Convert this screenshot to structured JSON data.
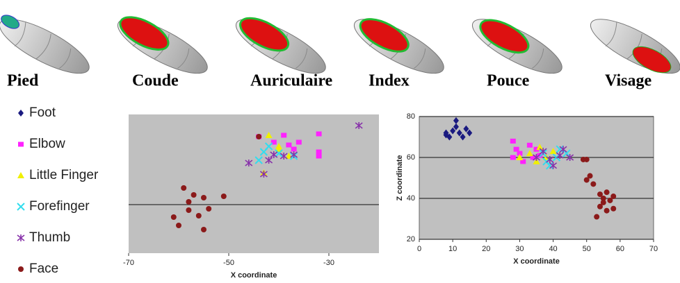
{
  "brain_labels": [
    "Pied",
    "Coude",
    "Auriculaire",
    "Index",
    "Pouce",
    "Visage"
  ],
  "chart_data": [
    {
      "type": "scatter",
      "xlabel": "X coordinate",
      "xlim": [
        -70,
        -20
      ],
      "xticks": [
        -70,
        -50,
        -30
      ],
      "ylim": [
        0,
        100
      ],
      "gridlines": [
        35
      ],
      "series": [
        {
          "name": "Foot",
          "color": "#1a1a80",
          "marker": "diamond",
          "x": [],
          "y": []
        },
        {
          "name": "Elbow",
          "color": "#ff22ff",
          "marker": "square",
          "x": [
            -44,
            -41,
            -38,
            -36,
            -32,
            -32,
            -32,
            -39,
            -37
          ],
          "y": [
            84,
            80,
            78,
            80,
            86,
            73,
            70,
            85,
            75
          ]
        },
        {
          "name": "Little Finger",
          "color": "#f0f000",
          "marker": "triangle",
          "x": [
            -42,
            -40,
            -43,
            -40,
            -38
          ],
          "y": [
            85,
            75,
            58,
            77,
            70
          ]
        },
        {
          "name": "Forefinger",
          "color": "#33ddee",
          "marker": "x",
          "x": [
            -44,
            -42,
            -40,
            -37,
            -43
          ],
          "y": [
            67,
            77,
            72,
            70,
            73
          ]
        },
        {
          "name": "Thumb",
          "color": "#8833aa",
          "marker": "star",
          "x": [
            -46,
            -43,
            -41,
            -39,
            -37,
            -24,
            -42
          ],
          "y": [
            65,
            57,
            71,
            70,
            71,
            92,
            67
          ]
        },
        {
          "name": "Face",
          "color": "#8b1a1a",
          "marker": "circle",
          "x": [
            -59,
            -57,
            -55,
            -58,
            -61,
            -60,
            -55,
            -51,
            -58,
            -54,
            -56,
            -44
          ],
          "y": [
            47,
            42,
            40,
            37,
            26,
            20,
            17,
            41,
            31,
            32,
            27,
            84
          ]
        }
      ]
    },
    {
      "type": "scatter",
      "xlabel": "X coordinate",
      "ylabel": "Z coordinate",
      "xlim": [
        0,
        70
      ],
      "xticks": [
        0,
        10,
        20,
        30,
        40,
        50,
        60,
        70
      ],
      "ylim": [
        20,
        80
      ],
      "yticks": [
        20,
        40,
        60,
        80
      ],
      "series": [
        {
          "color": "#1a1a80",
          "marker": "diamond",
          "x": [
            8,
            9,
            10,
            11,
            11,
            12,
            13,
            14,
            15,
            8
          ],
          "y": [
            71,
            70,
            73,
            75,
            78,
            72,
            70,
            74,
            72,
            72
          ]
        },
        {
          "color": "#ff22ff",
          "marker": "square",
          "x": [
            28,
            29,
            30,
            28,
            33,
            35,
            36,
            31,
            34
          ],
          "y": [
            68,
            64,
            62,
            60,
            66,
            64,
            61,
            58,
            60
          ]
        },
        {
          "color": "#f0f000",
          "marker": "triangle",
          "x": [
            30,
            33,
            35,
            38,
            40,
            36
          ],
          "y": [
            60,
            62,
            58,
            60,
            63,
            65
          ]
        },
        {
          "color": "#33ddee",
          "marker": "x",
          "x": [
            37,
            38,
            39,
            41,
            42,
            44
          ],
          "y": [
            62,
            58,
            56,
            60,
            64,
            62
          ]
        },
        {
          "color": "#8833aa",
          "marker": "star",
          "x": [
            35,
            37,
            39,
            40,
            42,
            45,
            43
          ],
          "y": [
            60,
            63,
            59,
            56,
            61,
            60,
            64
          ]
        },
        {
          "color": "#8b1a1a",
          "marker": "circle",
          "x": [
            49,
            50,
            50,
            51,
            52,
            54,
            55,
            56,
            55,
            54,
            57,
            58,
            53,
            56,
            58
          ],
          "y": [
            59,
            59,
            49,
            51,
            47,
            42,
            40,
            43,
            38,
            36,
            39,
            35,
            31,
            34,
            41
          ]
        }
      ]
    }
  ]
}
